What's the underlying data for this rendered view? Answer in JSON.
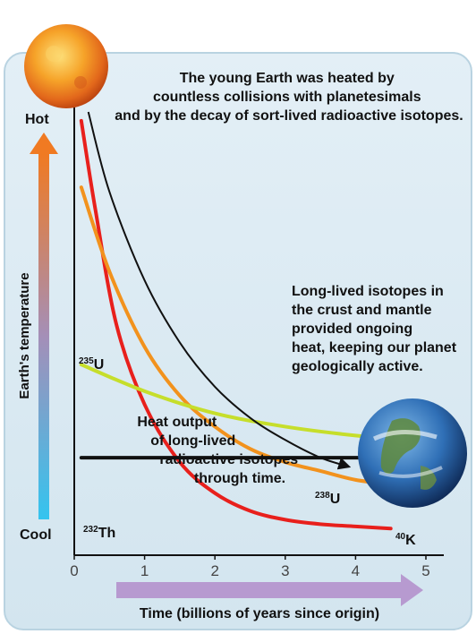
{
  "chart_data": {
    "type": "line",
    "title": "",
    "xlabel": "Time (billions of years since origin)",
    "ylabel": "Earth's temperature",
    "y_axis_labels": {
      "top": "Hot",
      "bottom": "Cool"
    },
    "xlim": [
      0,
      5
    ],
    "xticks": [
      "0",
      "1",
      "2",
      "3",
      "4",
      "5"
    ],
    "grid": false,
    "legend": "none",
    "annotations": {
      "young_earth": "The young Earth was heated by countless collisions with planetesimals and by the decay of sort-lived radioactive isotopes.",
      "long_lived": "Long-lived isotopes in the crust and mantle provided ongoing heat, keeping our planet geologically active.",
      "heat_output": "Heat output of long-lived radioactive isotopes through time."
    },
    "temperature_curve": {
      "color": "#111111",
      "x": [
        0.2,
        0.5,
        1.0,
        1.5,
        2.0,
        2.5,
        3.0,
        3.5,
        3.9
      ],
      "y": [
        1.0,
        0.82,
        0.62,
        0.48,
        0.38,
        0.31,
        0.26,
        0.22,
        0.2
      ]
    },
    "series": [
      {
        "name": "U",
        "mass": "235",
        "color": "#e8201c",
        "x": [
          0.1,
          0.3,
          0.6,
          1.0,
          1.5,
          2.0,
          2.5,
          3.0,
          3.5,
          4.0,
          4.5
        ],
        "y": [
          0.98,
          0.78,
          0.52,
          0.34,
          0.21,
          0.14,
          0.1,
          0.08,
          0.07,
          0.065,
          0.06
        ]
      },
      {
        "name": "K",
        "mass": "40",
        "color": "#f2921d",
        "x": [
          0.1,
          0.5,
          1.0,
          1.5,
          2.0,
          2.5,
          3.0,
          3.5,
          4.0,
          4.5
        ],
        "y": [
          0.83,
          0.64,
          0.47,
          0.36,
          0.29,
          0.24,
          0.21,
          0.19,
          0.17,
          0.16
        ]
      },
      {
        "name": "U",
        "mass": "238",
        "color": "#c6de2b",
        "x": [
          0.1,
          1.0,
          2.0,
          3.0,
          4.0,
          4.5
        ],
        "y": [
          0.43,
          0.37,
          0.32,
          0.29,
          0.27,
          0.265
        ]
      },
      {
        "name": "Th",
        "mass": "232",
        "color": "#111111",
        "x": [
          0.1,
          4.5
        ],
        "y": [
          0.22,
          0.22
        ]
      }
    ]
  }
}
